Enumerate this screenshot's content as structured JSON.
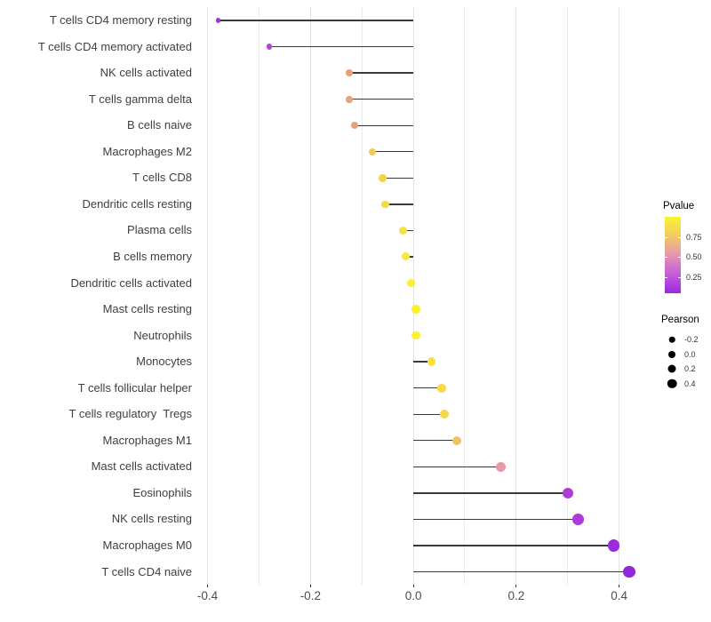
{
  "chart_data": {
    "type": "lollipop",
    "title": "",
    "xlabel": "",
    "ylabel": "",
    "orientation": "horizontal",
    "baseline": 0.0,
    "xlim": [
      -0.42,
      0.43
    ],
    "x_ticks": [
      {
        "label": "-0.4",
        "value": -0.4
      },
      {
        "label": "-0.2",
        "value": -0.2
      },
      {
        "label": "0.0",
        "value": 0.0
      },
      {
        "label": "0.2",
        "value": 0.2
      },
      {
        "label": "0.4",
        "value": 0.4
      }
    ],
    "x_minor_values": [
      -0.3,
      -0.1,
      0.1,
      0.3
    ],
    "grid": "vertical-only",
    "points": [
      {
        "label": "T cells CD4 memory resting",
        "pearson": -0.38,
        "color": "#A135DC"
      },
      {
        "label": "T cells CD4 memory activated",
        "pearson": -0.28,
        "color": "#B546D3"
      },
      {
        "label": "NK cells activated",
        "pearson": -0.125,
        "color": "#E8A077"
      },
      {
        "label": "T cells gamma delta",
        "pearson": -0.125,
        "color": "#E8A077"
      },
      {
        "label": "B cells naive",
        "pearson": -0.115,
        "color": "#E7A27A"
      },
      {
        "label": "Macrophages M2",
        "pearson": -0.08,
        "color": "#F2C95B"
      },
      {
        "label": "T cells CD8",
        "pearson": -0.06,
        "color": "#F4D24E"
      },
      {
        "label": "Dendritic cells resting",
        "pearson": -0.055,
        "color": "#F5D94B"
      },
      {
        "label": "Plasma cells",
        "pearson": -0.02,
        "color": "#F7E245"
      },
      {
        "label": "B cells memory",
        "pearson": -0.015,
        "color": "#F8E741"
      },
      {
        "label": "Dendritic cells activated",
        "pearson": -0.005,
        "color": "#FBEE33"
      },
      {
        "label": "Mast cells resting",
        "pearson": 0.005,
        "color": "#FCF12E"
      },
      {
        "label": "Neutrophils",
        "pearson": 0.005,
        "color": "#FCF12E"
      },
      {
        "label": "Monocytes",
        "pearson": 0.035,
        "color": "#F8E23D"
      },
      {
        "label": "T cells follicular helper",
        "pearson": 0.055,
        "color": "#F5DA4A"
      },
      {
        "label": "T cells regulatory  Tregs",
        "pearson": 0.06,
        "color": "#F5D94B"
      },
      {
        "label": "Macrophages M1",
        "pearson": 0.085,
        "color": "#EFC164"
      },
      {
        "label": "Mast cells activated",
        "pearson": 0.17,
        "color": "#E899A7"
      },
      {
        "label": "Eosinophils",
        "pearson": 0.3,
        "color": "#AC3ED7"
      },
      {
        "label": "NK cells resting",
        "pearson": 0.32,
        "color": "#AD3AD9"
      },
      {
        "label": "Macrophages M0",
        "pearson": 0.39,
        "color": "#9C2CDB"
      },
      {
        "label": "T cells CD4 naive",
        "pearson": 0.42,
        "color": "#9426DE"
      }
    ],
    "legend_pvalue": {
      "title": "Pvalue",
      "ticks": [
        {
          "label": "0.75",
          "value": 0.75
        },
        {
          "label": "0.50",
          "value": 0.5
        },
        {
          "label": "0.25",
          "value": 0.25
        }
      ],
      "bar_range": [
        1.0,
        0.05
      ],
      "gradient_top_to_bottom": [
        "#FCF22D",
        "#F2CB65",
        "#E397AE",
        "#C45CDC",
        "#9C27E0"
      ]
    },
    "legend_pearson": {
      "title": "Pearson",
      "dot_color": "#000000",
      "items": [
        {
          "label": "-0.2",
          "diameter": 6.5
        },
        {
          "label": "0.0",
          "diameter": 8
        },
        {
          "label": "0.2",
          "diameter": 9
        },
        {
          "label": "0.4",
          "diameter": 10.5
        }
      ]
    }
  },
  "style_colors": {
    "segment_line": "#3A3A3A",
    "grid_major": "#E3E3E3",
    "grid_minor": "#ECECEC",
    "axis_text": "#4D4D4D",
    "tick_mark": "#333333"
  }
}
